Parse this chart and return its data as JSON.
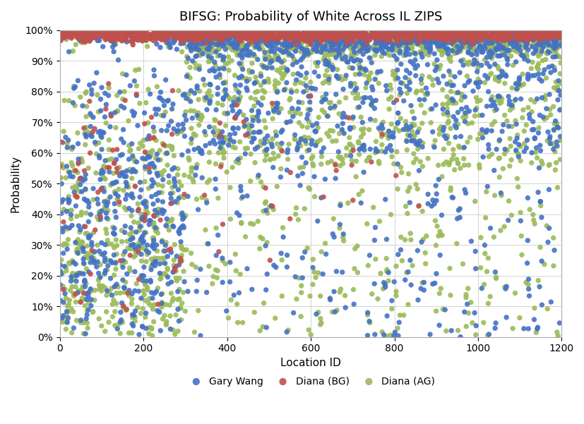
{
  "title": "BIFSG: Probability of White Across IL ZIPS",
  "xlabel": "Location ID",
  "ylabel": "Probability",
  "xlim": [
    0,
    1200
  ],
  "ylim": [
    0,
    1.0
  ],
  "series": [
    "Gary Wang",
    "Diana (BG)",
    "Diana (AG)"
  ],
  "colors": [
    "#4472C4",
    "#C0504D",
    "#9BBB59"
  ],
  "marker_size": 28,
  "alpha": 0.9,
  "yticks": [
    0,
    0.1,
    0.2,
    0.3,
    0.4,
    0.5,
    0.6,
    0.7,
    0.8,
    0.9,
    1.0
  ],
  "xticks": [
    0,
    200,
    400,
    600,
    800,
    1000,
    1200
  ],
  "grid": true,
  "background_color": "#FFFFFF",
  "title_fontsize": 13,
  "axis_label_fontsize": 11,
  "tick_fontsize": 10,
  "legend_fontsize": 10
}
